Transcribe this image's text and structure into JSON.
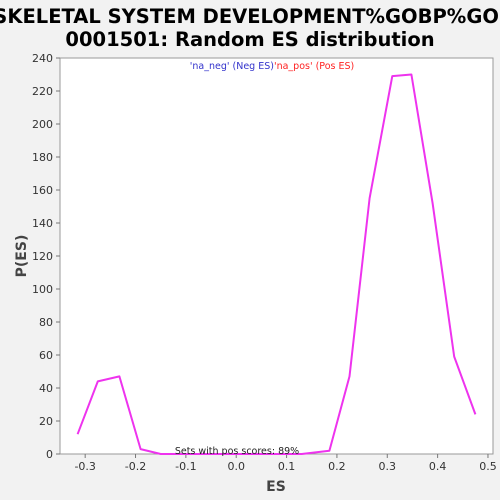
{
  "chart_data": {
    "type": "line",
    "title_lines": [
      "SKELETAL SYSTEM DEVELOPMENT%GOBP%GO:",
      "0001501: Random ES distribution"
    ],
    "xlabel": "ES",
    "ylabel": "P(ES)",
    "xlim": [
      -0.35,
      0.51
    ],
    "ylim": [
      0,
      240
    ],
    "xticks": [
      -0.3,
      -0.2,
      -0.1,
      0.0,
      0.1,
      0.2,
      0.3,
      0.4,
      0.5
    ],
    "xtick_labels": [
      "-0.3",
      "-0.2",
      "-0.1",
      "0.0",
      "0.1",
      "0.2",
      "0.3",
      "0.4",
      "0.5"
    ],
    "yticks": [
      0,
      20,
      40,
      60,
      80,
      100,
      120,
      140,
      160,
      180,
      200,
      220,
      240
    ],
    "ytick_labels": [
      "0",
      "20",
      "40",
      "60",
      "80",
      "100",
      "120",
      "140",
      "160",
      "180",
      "200",
      "220",
      "240"
    ],
    "grid": false,
    "legend": {
      "placement": "top-center",
      "neg_label": "'na_neg' (Neg ES)",
      "pos_label": "'na_pos' (Pos ES)",
      "neg_color": "#3333cc",
      "pos_color": "#ff2222"
    },
    "annotation": "Sets with pos scores: 89%",
    "series": [
      {
        "color": "#ee33ee",
        "x": [
          -0.315,
          -0.275,
          -0.232,
          -0.19,
          -0.15,
          -0.11,
          -0.07,
          -0.03,
          0.01,
          0.05,
          0.09,
          0.13,
          0.185,
          0.225,
          0.265,
          0.31,
          0.348,
          0.39,
          0.433,
          0.475
        ],
        "y": [
          12,
          44,
          47,
          3,
          0,
          0,
          0,
          0,
          0,
          0,
          0,
          0,
          2,
          47,
          155,
          229,
          230,
          152,
          59,
          24
        ]
      }
    ]
  }
}
